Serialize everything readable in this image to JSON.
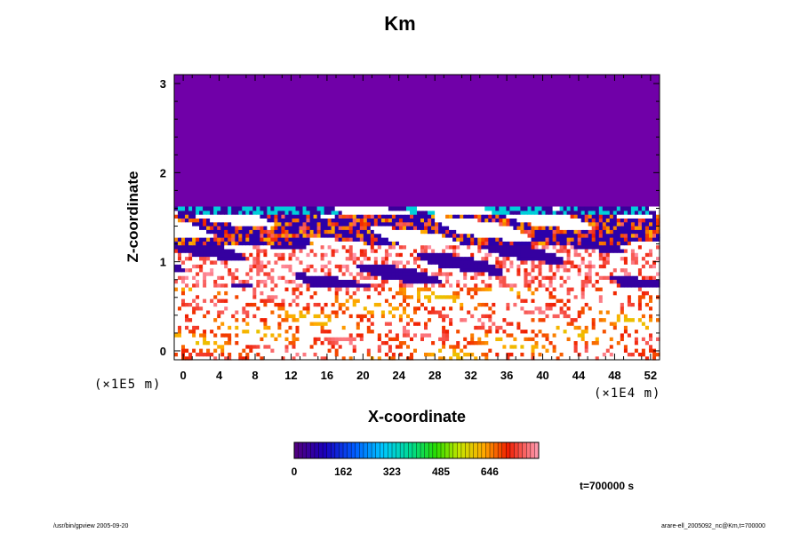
{
  "chart_data": {
    "type": "heatmap",
    "title": "Km",
    "xlabel": "X-coordinate",
    "ylabel": "Z-coordinate",
    "x_unit": "(×1E4 m)",
    "y_unit": "(×1E5 m)",
    "xlim": [
      -1,
      53
    ],
    "ylim": [
      -0.1,
      3.1
    ],
    "x_ticks": [
      "0",
      "4",
      "8",
      "12",
      "16",
      "20",
      "24",
      "28",
      "32",
      "36",
      "40",
      "44",
      "48",
      "52"
    ],
    "y_ticks": [
      "0",
      "1",
      "2",
      "3"
    ],
    "x_tick_values": [
      0,
      4,
      8,
      12,
      16,
      20,
      24,
      28,
      32,
      36,
      40,
      44,
      48,
      52
    ],
    "y_tick_values": [
      0,
      1,
      2,
      3
    ],
    "background_value": 0,
    "field_summary": [
      {
        "z_range": [
          1.6,
          3.1
        ],
        "description": "uniform lowest value (purple)"
      },
      {
        "z_range": [
          0.7,
          1.6
        ],
        "description": "alternating bands of low and high values"
      },
      {
        "z_range": [
          -0.1,
          0.7
        ],
        "description": "scattered moderate-to-high patches on high background"
      }
    ],
    "colorbar": {
      "ticks": [
        "0",
        "162",
        "323",
        "485",
        "646"
      ],
      "tick_values": [
        0,
        162,
        323,
        485,
        646
      ],
      "range": [
        0,
        808
      ]
    },
    "time_label": "t=700000 s",
    "grid": false
  },
  "footer": {
    "left": "/usr/bin/gpview 2005-09-20",
    "right": "arare-ell_2005092_nc@Km,t=700000"
  },
  "colors": {
    "background_purple": "#7000a8",
    "white": "#ffffff",
    "text": "#000000"
  }
}
